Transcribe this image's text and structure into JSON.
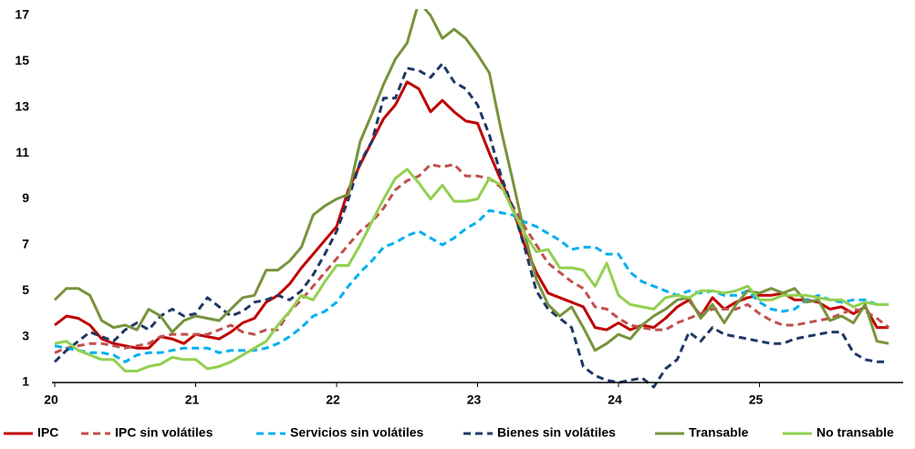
{
  "chart_data": {
    "type": "line",
    "x": [
      0,
      1,
      2,
      3,
      4,
      5,
      6,
      7,
      8,
      9,
      10,
      11,
      12,
      13,
      14,
      15,
      16,
      17,
      18,
      19,
      20,
      21,
      22,
      23,
      24,
      25,
      26,
      27,
      28,
      29,
      30,
      31,
      32,
      33,
      34,
      35,
      36,
      37,
      38,
      39,
      40,
      41,
      42,
      43,
      44,
      45,
      46,
      47,
      48,
      49,
      50,
      51,
      52,
      53,
      54,
      55,
      56,
      57,
      58,
      59,
      60,
      61,
      62,
      63,
      64,
      65,
      66,
      67,
      68,
      69,
      70,
      71
    ],
    "xlim": [
      0,
      72
    ],
    "xticks": [
      {
        "value": 0,
        "label": "20"
      },
      {
        "value": 12,
        "label": "21"
      },
      {
        "value": 24,
        "label": "22"
      },
      {
        "value": 36,
        "label": "23"
      },
      {
        "value": 48,
        "label": "24"
      },
      {
        "value": 60,
        "label": "25"
      }
    ],
    "ylim": [
      1,
      17
    ],
    "yticks": [
      1,
      3,
      5,
      7,
      9,
      11,
      13,
      15,
      17
    ],
    "series": [
      {
        "name": "IPC",
        "color": "#c00000",
        "dash": false,
        "values": [
          3.5,
          3.9,
          3.8,
          3.5,
          2.9,
          2.7,
          2.6,
          2.5,
          2.5,
          3.0,
          2.9,
          2.7,
          3.1,
          3.0,
          2.9,
          3.2,
          3.6,
          3.8,
          4.5,
          4.8,
          5.3,
          6.0,
          6.6,
          7.2,
          7.8,
          9.4,
          10.5,
          11.5,
          12.5,
          13.1,
          14.1,
          13.8,
          12.8,
          13.3,
          12.8,
          12.4,
          12.3,
          11.0,
          9.8,
          8.6,
          7.0,
          5.8,
          4.9,
          4.7,
          4.5,
          4.3,
          3.4,
          3.3,
          3.6,
          3.3,
          3.5,
          3.4,
          3.8,
          4.3,
          4.6,
          3.9,
          4.7,
          4.2,
          4.5,
          4.7,
          4.8,
          4.8,
          4.9,
          4.6,
          4.6,
          4.5,
          4.2,
          4.3,
          4.0,
          4.3,
          3.4,
          3.4
        ]
      },
      {
        "name": "IPC sin volátiles",
        "color": "#c0504d",
        "dash": true,
        "values": [
          2.3,
          2.5,
          2.6,
          2.7,
          2.7,
          2.6,
          2.5,
          2.6,
          2.7,
          3.0,
          3.1,
          3.1,
          3.1,
          3.1,
          3.3,
          3.5,
          3.2,
          3.1,
          3.3,
          3.3,
          4.1,
          4.6,
          5.2,
          5.8,
          6.4,
          7.0,
          7.6,
          8.0,
          8.6,
          9.4,
          9.8,
          10.0,
          10.5,
          10.4,
          10.5,
          10.0,
          10.0,
          9.9,
          9.5,
          8.7,
          7.8,
          7.0,
          6.2,
          5.8,
          5.4,
          5.1,
          4.3,
          4.2,
          3.8,
          3.5,
          3.4,
          3.3,
          3.3,
          3.6,
          3.8,
          4.0,
          4.2,
          4.2,
          4.2,
          4.4,
          4.0,
          3.7,
          3.5,
          3.5,
          3.6,
          3.7,
          3.8,
          4.0,
          4.2,
          4.1,
          3.8,
          3.4
        ]
      },
      {
        "name": "Servicios sin volátiles",
        "color": "#00b0f0",
        "dash": true,
        "values": [
          2.6,
          2.5,
          2.4,
          2.3,
          2.3,
          2.2,
          1.9,
          2.2,
          2.3,
          2.3,
          2.4,
          2.5,
          2.5,
          2.5,
          2.3,
          2.4,
          2.4,
          2.4,
          2.5,
          2.7,
          3.0,
          3.4,
          3.9,
          4.1,
          4.5,
          5.2,
          5.8,
          6.3,
          6.9,
          7.1,
          7.4,
          7.6,
          7.3,
          7.0,
          7.3,
          7.7,
          8.0,
          8.5,
          8.4,
          8.3,
          8.0,
          7.8,
          7.5,
          7.2,
          6.8,
          6.9,
          6.9,
          6.6,
          6.6,
          5.8,
          5.4,
          5.2,
          5.0,
          4.8,
          5.0,
          4.9,
          5.0,
          4.8,
          4.8,
          5.0,
          4.5,
          4.2,
          4.1,
          4.2,
          4.6,
          4.8,
          4.6,
          4.5,
          4.6,
          4.6,
          4.4,
          4.4
        ]
      },
      {
        "name": "Bienes sin volátiles",
        "color": "#1f3864",
        "dash": true,
        "values": [
          1.9,
          2.4,
          2.8,
          3.2,
          3.0,
          2.8,
          3.3,
          3.6,
          3.3,
          3.9,
          4.2,
          3.9,
          4.0,
          4.7,
          4.3,
          3.9,
          4.1,
          4.5,
          4.6,
          4.8,
          4.6,
          5.0,
          5.7,
          6.6,
          7.6,
          9.0,
          10.6,
          11.5,
          13.4,
          13.4,
          14.7,
          14.6,
          14.3,
          14.9,
          14.1,
          13.8,
          13.1,
          11.8,
          10.0,
          8.6,
          6.9,
          5.0,
          4.2,
          3.8,
          3.4,
          1.7,
          1.3,
          1.1,
          1.0,
          1.1,
          1.2,
          0.8,
          1.6,
          2.0,
          3.2,
          2.8,
          3.4,
          3.1,
          3.0,
          2.9,
          2.8,
          2.7,
          2.7,
          2.9,
          3.0,
          3.1,
          3.2,
          3.2,
          2.3,
          2.0,
          1.9,
          1.9
        ]
      },
      {
        "name": "Transable",
        "color": "#77933c",
        "dash": false,
        "values": [
          4.6,
          5.1,
          5.1,
          4.8,
          3.7,
          3.4,
          3.5,
          3.3,
          4.2,
          3.9,
          3.2,
          3.7,
          3.9,
          3.8,
          3.7,
          4.2,
          4.7,
          4.8,
          5.9,
          5.9,
          6.3,
          6.9,
          8.3,
          8.7,
          9.0,
          9.2,
          11.5,
          12.7,
          14.0,
          15.1,
          15.8,
          17.6,
          17.0,
          16.0,
          16.4,
          16.0,
          15.3,
          14.5,
          12.0,
          9.8,
          7.5,
          5.5,
          4.4,
          3.9,
          4.3,
          3.4,
          2.4,
          2.7,
          3.1,
          2.9,
          3.5,
          3.9,
          4.2,
          4.6,
          4.7,
          3.8,
          4.4,
          3.6,
          4.4,
          5.0,
          4.9,
          5.1,
          4.9,
          5.1,
          4.5,
          4.6,
          3.7,
          3.9,
          3.6,
          4.4,
          2.8,
          2.7
        ]
      },
      {
        "name": "No transable",
        "color": "#92d050",
        "dash": false,
        "values": [
          2.7,
          2.8,
          2.4,
          2.2,
          2.0,
          2.0,
          1.5,
          1.5,
          1.7,
          1.8,
          2.1,
          2.0,
          2.0,
          1.6,
          1.7,
          1.9,
          2.2,
          2.5,
          2.8,
          3.5,
          4.1,
          4.8,
          4.6,
          5.4,
          6.1,
          6.1,
          7.0,
          8.0,
          9.0,
          9.9,
          10.3,
          9.7,
          9.0,
          9.6,
          8.9,
          8.9,
          9.0,
          9.9,
          9.6,
          8.5,
          7.5,
          6.7,
          6.8,
          6.0,
          6.0,
          5.9,
          5.2,
          6.2,
          4.8,
          4.4,
          4.3,
          4.2,
          4.7,
          4.8,
          4.7,
          5.0,
          5.0,
          4.9,
          5.0,
          5.2,
          4.6,
          4.6,
          4.8,
          4.8,
          4.8,
          4.7,
          4.6,
          4.6,
          4.3,
          4.5,
          4.4,
          4.4
        ]
      }
    ],
    "grid": false,
    "legend": "bottom"
  }
}
